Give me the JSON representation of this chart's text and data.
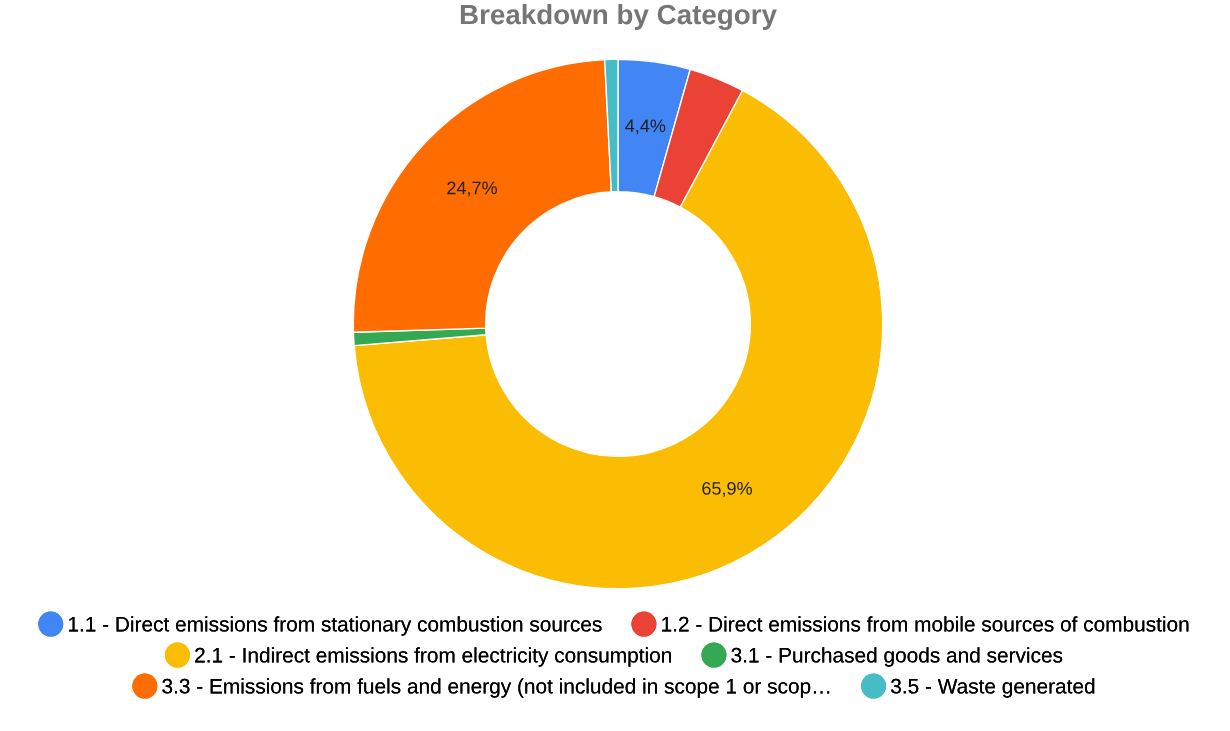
{
  "chart_data": {
    "type": "donut",
    "title": "Breakdown by Category",
    "categories": [
      "1.1 - Direct emissions from stationary combustion sources",
      "1.2 - Direct emissions from mobile sources of combustion",
      "2.1 - Indirect emissions from electricity consumption",
      "3.1 - Purchased goods and services",
      "3.3 - Emissions from fuels and energy (not included in scope 1 or scop…",
      "3.5 - Waste generated"
    ],
    "values": [
      4.4,
      3.4,
      65.9,
      0.8,
      24.7,
      0.8
    ],
    "colors": [
      "#4285f4",
      "#ea4335",
      "#fbbc04",
      "#34a853",
      "#ff6d01",
      "#46bdc6"
    ],
    "value_labels": [
      "4,4%",
      null,
      "65,9%",
      null,
      "24,7%",
      null
    ],
    "legend": "bottom"
  }
}
